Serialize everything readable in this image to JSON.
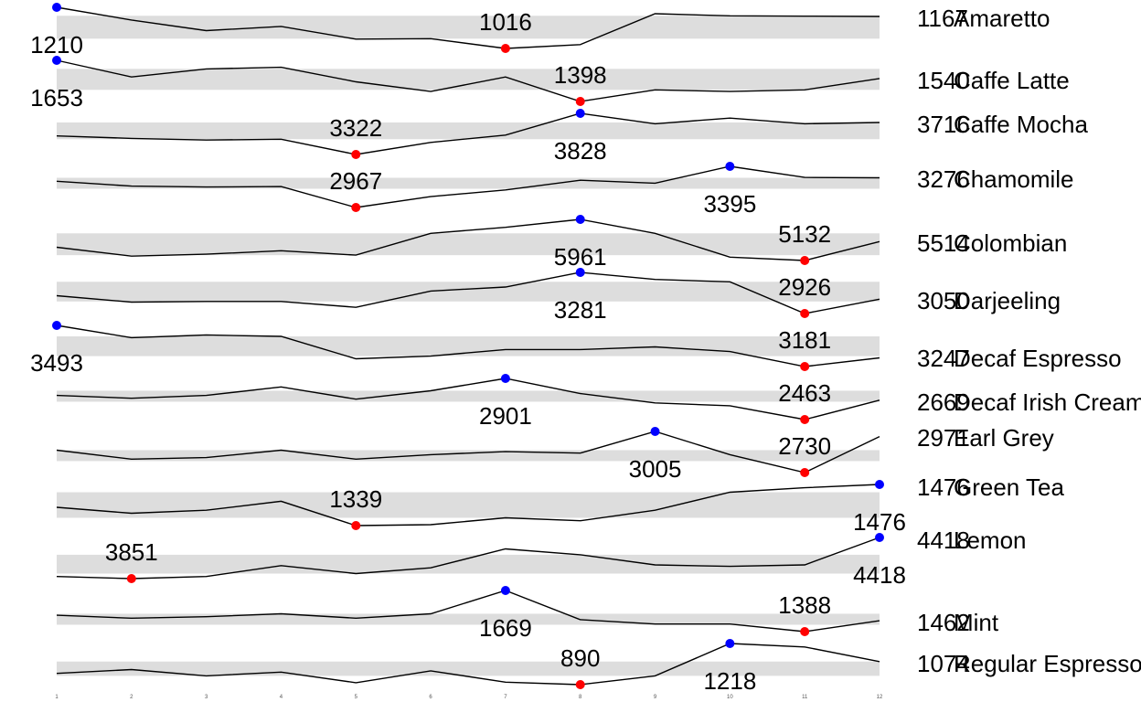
{
  "chart_data": {
    "type": "line",
    "chart_style": "sparklines",
    "x": [
      1,
      2,
      3,
      4,
      5,
      6,
      7,
      8,
      9,
      10,
      11,
      12
    ],
    "x_tick_labels": [
      "1",
      "2",
      "3",
      "4",
      "5",
      "6",
      "7",
      "8",
      "9",
      "10",
      "11",
      "12"
    ],
    "min_color": "#ff0000",
    "max_color": "#0000ff",
    "band_color": "#dddddd",
    "series": [
      {
        "name": "Amaretto",
        "values": [
          1210,
          1150,
          1100,
          1120,
          1060,
          1062,
          1016,
          1034,
          1180,
          1170,
          1168,
          1167
        ],
        "min": 1016,
        "max": 1210,
        "last": 1167
      },
      {
        "name": "Caffe Latte",
        "values": [
          1653,
          1550,
          1600,
          1610,
          1520,
          1460,
          1550,
          1398,
          1470,
          1460,
          1470,
          1540
        ],
        "min": 1398,
        "max": 1653,
        "last": 1540
      },
      {
        "name": "Caffe Mocha",
        "values": [
          3550,
          3520,
          3500,
          3510,
          3322,
          3470,
          3560,
          3828,
          3700,
          3770,
          3700,
          3716
        ],
        "min": 3322,
        "max": 3828,
        "last": 3716
      },
      {
        "name": "Chamomile",
        "values": [
          3240,
          3190,
          3180,
          3185,
          2967,
          3080,
          3150,
          3250,
          3220,
          3395,
          3280,
          3276
        ],
        "min": 2967,
        "max": 3395,
        "last": 3276
      },
      {
        "name": "Colombian",
        "values": [
          5400,
          5220,
          5260,
          5330,
          5240,
          5680,
          5800,
          5961,
          5680,
          5200,
          5132,
          5514
        ],
        "min": 5132,
        "max": 5961,
        "last": 5514
      },
      {
        "name": "Darjeeling",
        "values": [
          3080,
          3025,
          3030,
          3030,
          2980,
          3120,
          3155,
          3281,
          3220,
          3200,
          2926,
          3050
        ],
        "min": 2926,
        "max": 3281,
        "last": 3050
      },
      {
        "name": "Decaf Espresso",
        "values": [
          3493,
          3400,
          3420,
          3410,
          3240,
          3260,
          3310,
          3310,
          3330,
          3295,
          3181,
          3247
        ],
        "min": 3181,
        "max": 3493,
        "last": 3247
      },
      {
        "name": "Decaf Irish Cream",
        "values": [
          2720,
          2690,
          2720,
          2810,
          2680,
          2770,
          2901,
          2740,
          2640,
          2610,
          2463,
          2669
        ],
        "min": 2463,
        "max": 2901,
        "last": 2669
      },
      {
        "name": "Earl Grey",
        "values": [
          2880,
          2820,
          2830,
          2880,
          2820,
          2850,
          2870,
          2860,
          3005,
          2850,
          2730,
          2971
        ],
        "min": 2730,
        "max": 3005,
        "last": 2971
      },
      {
        "name": "Green Tea",
        "values": [
          1400,
          1380,
          1390,
          1420,
          1339,
          1342,
          1365,
          1355,
          1390,
          1450,
          1465,
          1476
        ],
        "min": 1339,
        "max": 1476,
        "last": 1476
      },
      {
        "name": "Lemon",
        "values": [
          3880,
          3851,
          3880,
          4030,
          3920,
          4000,
          4260,
          4180,
          4040,
          4020,
          4040,
          4418
        ],
        "min": 3851,
        "max": 4418,
        "last": 4418
      },
      {
        "name": "Mint",
        "values": [
          1500,
          1480,
          1490,
          1510,
          1480,
          1510,
          1669,
          1470,
          1440,
          1440,
          1388,
          1462
        ],
        "min": 1388,
        "max": 1669,
        "last": 1462
      },
      {
        "name": "Regular Espresso",
        "values": [
          980,
          1010,
          960,
          990,
          905,
          1000,
          910,
          890,
          960,
          1218,
          1190,
          1074
        ],
        "min": 890,
        "max": 1218,
        "last": 1074
      }
    ]
  }
}
